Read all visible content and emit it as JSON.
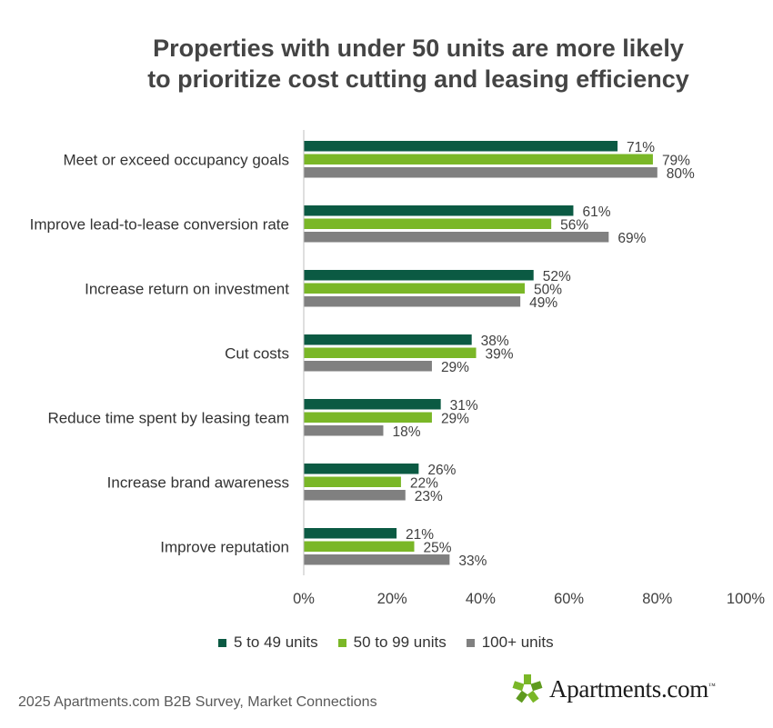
{
  "title_lines": [
    "Properties with under 50 units are more likely",
    "to prioritize cost cutting and leasing efficiency"
  ],
  "colors": {
    "series_1": "#0b5a43",
    "series_2": "#7ab727",
    "series_3": "#808080",
    "axis": "#bfbfbf"
  },
  "chart_data": {
    "type": "bar",
    "orientation": "horizontal",
    "categories": [
      "Meet or exceed occupancy goals",
      "Improve lead-to-lease conversion rate",
      "Increase return on investment",
      "Cut costs",
      "Reduce time spent by leasing team",
      "Increase brand awareness",
      "Improve reputation"
    ],
    "series": [
      {
        "name": "5 to 49 units",
        "values": [
          71,
          61,
          52,
          38,
          31,
          26,
          21
        ]
      },
      {
        "name": "50 to 99 units",
        "values": [
          79,
          56,
          50,
          39,
          29,
          22,
          25
        ]
      },
      {
        "name": "100+ units",
        "values": [
          80,
          69,
          49,
          29,
          18,
          23,
          33
        ]
      }
    ],
    "value_suffix": "%",
    "x_ticks": [
      "0%",
      "20%",
      "40%",
      "60%",
      "80%",
      "100%"
    ],
    "xlim": [
      0,
      100
    ],
    "legend_position": "bottom"
  },
  "legend": [
    "5 to 49 units",
    "50 to 99 units",
    "100+ units"
  ],
  "source": "2025 Apartments.com B2B Survey, Market Connections",
  "logo": {
    "text": "Apartments.com",
    "mark": "™"
  }
}
